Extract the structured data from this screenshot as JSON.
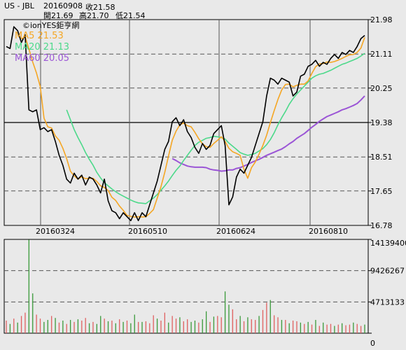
{
  "header": {
    "symbol": "US - JBL",
    "date": "20160908",
    "close": "收21.58",
    "open": "開21.69",
    "high": "高21.70",
    "low": "低21.54"
  },
  "watermark": "©ionYES鉅亨網",
  "legend": [
    {
      "label": "MA5 21.53",
      "color": "#f5a623"
    },
    {
      "label": "MA20 21.13",
      "color": "#4cd98a"
    },
    {
      "label": "MA60 20.05",
      "color": "#9b55d6"
    }
  ],
  "colors": {
    "price": "#000000",
    "ma5": "#f5a623",
    "ma20": "#4cd98a",
    "ma60": "#9b55d6",
    "vol_up": "#e06060",
    "vol_down": "#3a9a3a",
    "background": "#e9e9e9"
  },
  "chart_data": [
    {
      "type": "line",
      "ylim": [
        16.78,
        21.98
      ],
      "y_ticks": [
        "21.98",
        "21.11",
        "20.25",
        "19.38",
        "18.51",
        "17.65",
        "16.78"
      ],
      "x_tick_labels": [
        "20160324",
        "20160510",
        "20160624",
        "20160810"
      ],
      "series": [
        {
          "name": "Price",
          "values": [
            21.3,
            21.25,
            21.8,
            21.7,
            21.4,
            21.6,
            19.7,
            19.65,
            19.7,
            19.2,
            19.25,
            19.15,
            19.2,
            18.9,
            18.55,
            18.3,
            17.95,
            17.85,
            18.1,
            17.95,
            18.05,
            17.8,
            18.0,
            17.95,
            17.8,
            17.6,
            17.95,
            17.4,
            17.15,
            17.1,
            16.95,
            17.1,
            17.0,
            16.9,
            17.1,
            16.9,
            17.1,
            17.0,
            17.3,
            17.6,
            17.9,
            18.3,
            18.7,
            18.9,
            19.4,
            19.5,
            19.3,
            19.45,
            19.15,
            19.0,
            18.75,
            18.6,
            18.85,
            18.7,
            18.8,
            19.1,
            19.2,
            19.3,
            18.8,
            17.3,
            17.5,
            18.0,
            18.2,
            18.1,
            18.3,
            18.5,
            18.8,
            19.1,
            19.4,
            20.05,
            20.5,
            20.45,
            20.35,
            20.5,
            20.45,
            20.4,
            20.05,
            20.15,
            20.55,
            20.6,
            20.8,
            20.85,
            20.95,
            20.8,
            20.9,
            20.85,
            21.0,
            21.1,
            21.0,
            21.15,
            21.1,
            21.2,
            21.15,
            21.3,
            21.5,
            21.58
          ]
        },
        {
          "name": "MA5",
          "values": [
            null,
            null,
            null,
            null,
            21.49,
            21.55,
            21.24,
            20.91,
            20.63,
            20.29,
            19.49,
            19.27,
            19.24,
            19.04,
            18.93,
            18.73,
            18.47,
            18.15,
            18.03,
            17.95,
            18.01,
            17.96,
            17.97,
            17.97,
            17.89,
            17.78,
            17.74,
            17.66,
            17.49,
            17.41,
            17.27,
            17.16,
            17.03,
            17.01,
            16.99,
            17.0,
            16.99,
            17.0,
            17.08,
            17.18,
            17.47,
            17.76,
            18.12,
            18.53,
            18.93,
            19.16,
            19.32,
            19.37,
            19.3,
            19.27,
            19.13,
            18.97,
            18.84,
            18.77,
            18.75,
            18.85,
            18.93,
            19.02,
            18.9,
            18.73,
            18.64,
            18.6,
            18.55,
            18.2,
            17.97,
            18.24,
            18.38,
            18.58,
            18.8,
            19.06,
            19.38,
            19.68,
            19.96,
            20.2,
            20.34,
            20.35,
            20.28,
            20.32,
            20.35,
            20.35,
            20.43,
            20.62,
            20.79,
            20.86,
            20.87,
            20.91,
            20.9,
            20.92,
            20.96,
            21.0,
            21.05,
            21.09,
            21.1,
            21.15,
            21.26,
            21.53
          ]
        },
        {
          "name": "MA20",
          "values": [
            null,
            null,
            null,
            null,
            null,
            null,
            null,
            null,
            null,
            null,
            null,
            null,
            null,
            null,
            null,
            null,
            19.7,
            19.45,
            19.2,
            19.0,
            18.82,
            18.62,
            18.45,
            18.3,
            18.12,
            17.98,
            17.86,
            17.78,
            17.7,
            17.63,
            17.57,
            17.52,
            17.47,
            17.42,
            17.38,
            17.35,
            17.34,
            17.33,
            17.4,
            17.47,
            17.56,
            17.67,
            17.78,
            17.9,
            18.04,
            18.17,
            18.28,
            18.42,
            18.55,
            18.68,
            18.8,
            18.88,
            18.93,
            18.98,
            19.0,
            19.03,
            19.02,
            19.0,
            18.96,
            18.86,
            18.78,
            18.7,
            18.62,
            18.58,
            18.55,
            18.57,
            18.6,
            18.66,
            18.72,
            18.82,
            18.95,
            19.12,
            19.32,
            19.5,
            19.66,
            19.84,
            19.98,
            20.1,
            20.2,
            20.3,
            20.4,
            20.5,
            20.56,
            20.6,
            20.62,
            20.66,
            20.7,
            20.75,
            20.8,
            20.85,
            20.88,
            20.92,
            20.96,
            21.0,
            21.06,
            21.13
          ]
        },
        {
          "name": "MA60",
          "values": [
            null,
            null,
            null,
            null,
            null,
            null,
            null,
            null,
            null,
            null,
            null,
            null,
            null,
            null,
            null,
            null,
            null,
            null,
            null,
            null,
            null,
            null,
            null,
            null,
            null,
            null,
            null,
            null,
            null,
            null,
            null,
            null,
            null,
            null,
            null,
            null,
            null,
            null,
            null,
            null,
            null,
            null,
            null,
            null,
            18.47,
            18.42,
            18.36,
            18.32,
            18.28,
            18.26,
            18.25,
            18.25,
            18.25,
            18.24,
            18.2,
            18.18,
            18.17,
            18.15,
            18.16,
            18.18,
            18.18,
            18.22,
            18.24,
            18.28,
            18.32,
            18.37,
            18.41,
            18.45,
            18.5,
            18.55,
            18.59,
            18.63,
            18.67,
            18.71,
            18.77,
            18.84,
            18.9,
            18.98,
            19.04,
            19.1,
            19.18,
            19.26,
            19.33,
            19.41,
            19.47,
            19.53,
            19.57,
            19.61,
            19.65,
            19.7,
            19.73,
            19.77,
            19.81,
            19.86,
            19.95,
            20.05
          ]
        }
      ]
    },
    {
      "type": "bar",
      "ylim": [
        0,
        14139400
      ],
      "y_ticks": [
        "14139400",
        "9426267",
        "4713133",
        "0"
      ],
      "values": [
        1900000,
        1400000,
        2200000,
        1600000,
        2600000,
        3100000,
        14100000,
        6000000,
        2800000,
        2200000,
        1700000,
        2000000,
        2600000,
        2300000,
        1600000,
        1900000,
        1400000,
        2000000,
        1700000,
        2100000,
        1900000,
        2300000,
        1500000,
        1700000,
        1400000,
        2600000,
        2200000,
        1800000,
        1900000,
        1500000,
        2100000,
        1700000,
        1900000,
        1500000,
        2800000,
        1700000,
        1700000,
        1800000,
        1500000,
        2700000,
        2200000,
        1900000,
        3100000,
        1600000,
        2600000,
        2200000,
        2400000,
        1800000,
        2100000,
        1700000,
        1900000,
        1600000,
        2100000,
        3300000,
        1700000,
        2500000,
        2600000,
        2400000,
        6300000,
        4300000,
        3600000,
        2100000,
        2600000,
        1800000,
        2400000,
        2100000,
        2000000,
        2600000,
        3500000,
        4600000,
        5000000,
        2700000,
        2400000,
        2000000,
        2000000,
        1500000,
        1900000,
        1800000,
        1600000,
        1400000,
        1700000,
        1300000,
        2000000,
        1100000,
        1600000,
        1300000,
        1400000,
        1100000,
        1300000,
        1500000,
        1200000,
        1300000,
        1600000,
        1400000,
        1100000,
        1300000
      ],
      "directions": [
        "u",
        "d",
        "u",
        "d",
        "u",
        "u",
        "d",
        "d",
        "u",
        "u",
        "d",
        "d",
        "u",
        "d",
        "u",
        "d",
        "u",
        "d",
        "u",
        "d",
        "u",
        "u",
        "d",
        "u",
        "d",
        "d",
        "u",
        "d",
        "u",
        "d",
        "u",
        "d",
        "u",
        "d",
        "d",
        "u",
        "d",
        "u",
        "u",
        "u",
        "d",
        "u",
        "u",
        "d",
        "u",
        "u",
        "d",
        "u",
        "u",
        "d",
        "d",
        "u",
        "d",
        "d",
        "u",
        "d",
        "u",
        "u",
        "d",
        "d",
        "u",
        "u",
        "d",
        "u",
        "d",
        "u",
        "u",
        "d",
        "u",
        "u",
        "d",
        "u",
        "u",
        "d",
        "u",
        "d",
        "u",
        "u",
        "d",
        "u",
        "d",
        "u",
        "d",
        "u",
        "d",
        "u",
        "u",
        "d",
        "u",
        "d",
        "u",
        "u",
        "d",
        "u",
        "u",
        "d"
      ]
    }
  ]
}
